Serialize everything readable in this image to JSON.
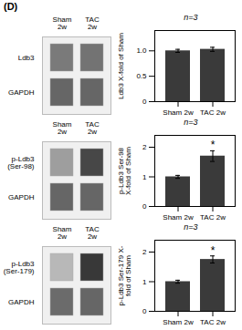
{
  "title": "(D)",
  "chart_data": [
    {
      "type": "heatmap",
      "x": [
        "Sham\n2w",
        "TAC\n2w"
      ],
      "y": [
        "Ldb3",
        "GAPDH"
      ],
      "cells": [
        [
          0.52,
          0.55
        ],
        [
          0.6,
          0.6
        ]
      ],
      "zlim": [
        0,
        1
      ]
    },
    {
      "type": "bar",
      "subtitle": "n=3",
      "ylabel": "Ldb3 X-fold of Sham",
      "categories": [
        "Sham 2w",
        "TAC 2w"
      ],
      "values": [
        1.0,
        1.03
      ],
      "errors": [
        0.03,
        0.04
      ],
      "ylim": [
        0,
        1.4
      ],
      "yticks": [
        0,
        0.5,
        {
          "value": 1.0,
          "label": "1.0"
        }
      ],
      "color": "#3a3a3a"
    },
    {
      "type": "heatmap",
      "x": [
        "Sham\n2w",
        "TAC\n2w"
      ],
      "y": [
        "p-Ldb3\n(Ser-98)",
        "GAPDH"
      ],
      "cells": [
        [
          0.38,
          0.72
        ],
        [
          0.6,
          0.6
        ]
      ],
      "zlim": [
        0,
        1
      ]
    },
    {
      "type": "bar",
      "subtitle": "n=3",
      "ylabel": "p-Ldb3 Ser-98\nX-fold of Sham",
      "categories": [
        "Sham 2w",
        "TAC 2w"
      ],
      "values": [
        1.0,
        1.7
      ],
      "errors": [
        0.05,
        0.18
      ],
      "ylim": [
        0,
        2.4
      ],
      "yticks": [
        0,
        1,
        2
      ],
      "color": "#3a3a3a",
      "annotations": [
        {
          "text": "*",
          "x": "TAC 2w"
        }
      ]
    },
    {
      "type": "heatmap",
      "x": [
        "Sham\n2w",
        "TAC\n2w"
      ],
      "y": [
        "p-Ldb3\n(Ser-179)",
        "GAPDH"
      ],
      "cells": [
        [
          0.28,
          0.78
        ],
        [
          0.58,
          0.6
        ]
      ],
      "zlim": [
        0,
        1
      ]
    },
    {
      "type": "bar",
      "subtitle": "n=3",
      "ylabel": "p-Ldb3 Ser-179 X-\nfold of Sham",
      "categories": [
        "Sham 2w",
        "TAC 2w"
      ],
      "values": [
        1.0,
        1.75
      ],
      "errors": [
        0.05,
        0.12
      ],
      "ylim": [
        0,
        2.4
      ],
      "yticks": [
        0,
        1,
        2
      ],
      "color": "#3a3a3a",
      "annotations": [
        {
          "text": "*",
          "x": "TAC 2w"
        }
      ]
    }
  ]
}
